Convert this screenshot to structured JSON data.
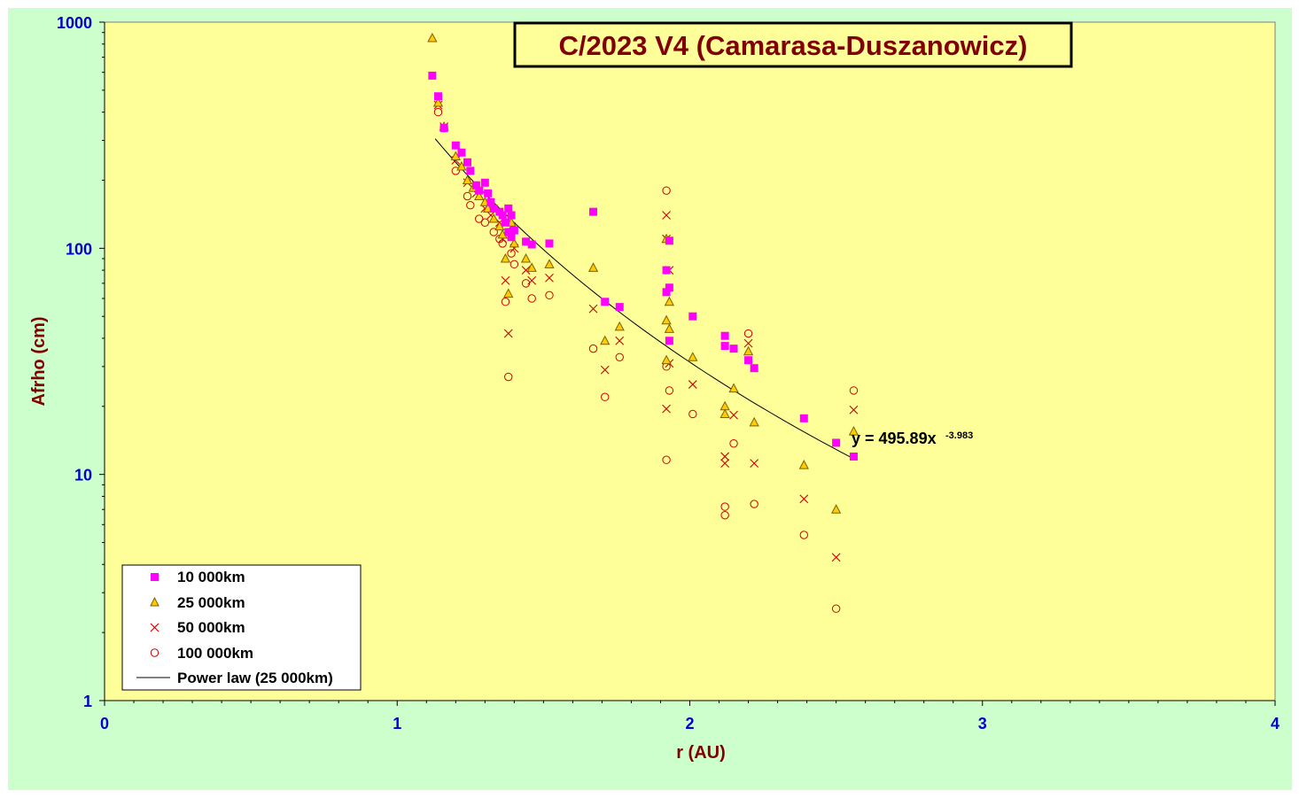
{
  "chart_data": {
    "type": "scatter",
    "title": "C/2023 V4 (Camarasa-Duszanowicz)",
    "xlabel": "r (AU)",
    "ylabel": "Afrho (cm)",
    "xlim": [
      0,
      4
    ],
    "ylim": [
      1,
      1000
    ],
    "yscale": "log",
    "x_ticks": [
      "0",
      "1",
      "2",
      "3",
      "4"
    ],
    "y_ticks": [
      "1",
      "10",
      "100",
      "1000"
    ],
    "grid": false,
    "legend_position": "bottom-left",
    "plot_background": "#ffff99",
    "figure_background": "#ccffcc",
    "annotation": {
      "base": "y = 495.89x",
      "exponent": "-3.983"
    },
    "fit": {
      "name": "Power law (25 000km)",
      "coefficient": 495.89,
      "exponent": -3.983,
      "x_range": [
        1.13,
        2.56
      ],
      "color": "#000000"
    },
    "series": [
      {
        "name": "10 000km",
        "marker": "square",
        "color": "#ff00ff",
        "points": [
          [
            1.12,
            580
          ],
          [
            1.14,
            470
          ],
          [
            1.16,
            340
          ],
          [
            1.2,
            285
          ],
          [
            1.22,
            265
          ],
          [
            1.24,
            240
          ],
          [
            1.25,
            220
          ],
          [
            1.27,
            190
          ],
          [
            1.28,
            180
          ],
          [
            1.3,
            195
          ],
          [
            1.31,
            175
          ],
          [
            1.32,
            160
          ],
          [
            1.33,
            150
          ],
          [
            1.35,
            145
          ],
          [
            1.36,
            140
          ],
          [
            1.37,
            130
          ],
          [
            1.38,
            150
          ],
          [
            1.39,
            140
          ],
          [
            1.4,
            120
          ],
          [
            1.38,
            118
          ],
          [
            1.39,
            112
          ],
          [
            1.44,
            107
          ],
          [
            1.46,
            104
          ],
          [
            1.52,
            105
          ],
          [
            1.67,
            145
          ],
          [
            1.71,
            58
          ],
          [
            1.76,
            55
          ],
          [
            1.92,
            80
          ],
          [
            1.92,
            64
          ],
          [
            1.93,
            67
          ],
          [
            1.93,
            108
          ],
          [
            1.93,
            39
          ],
          [
            2.01,
            50
          ],
          [
            2.12,
            41
          ],
          [
            2.12,
            37
          ],
          [
            2.15,
            36
          ],
          [
            2.2,
            32
          ],
          [
            2.22,
            29.5
          ],
          [
            2.39,
            17.7
          ],
          [
            2.5,
            13.8
          ],
          [
            2.56,
            12
          ]
        ]
      },
      {
        "name": "25 000km",
        "marker": "triangle",
        "color": "#ffcc00",
        "points": [
          [
            1.12,
            850
          ],
          [
            1.14,
            440
          ],
          [
            1.16,
            345
          ],
          [
            1.2,
            255
          ],
          [
            1.22,
            230
          ],
          [
            1.24,
            200
          ],
          [
            1.26,
            185
          ],
          [
            1.28,
            170
          ],
          [
            1.3,
            160
          ],
          [
            1.31,
            150
          ],
          [
            1.33,
            135
          ],
          [
            1.35,
            125
          ],
          [
            1.36,
            115
          ],
          [
            1.37,
            90
          ],
          [
            1.38,
            63
          ],
          [
            1.39,
            130
          ],
          [
            1.4,
            105
          ],
          [
            1.44,
            90
          ],
          [
            1.46,
            82
          ],
          [
            1.52,
            85
          ],
          [
            1.67,
            82
          ],
          [
            1.71,
            39
          ],
          [
            1.76,
            45
          ],
          [
            1.92,
            110
          ],
          [
            1.92,
            48
          ],
          [
            1.93,
            58
          ],
          [
            1.93,
            44
          ],
          [
            1.92,
            32
          ],
          [
            2.01,
            33
          ],
          [
            2.12,
            20
          ],
          [
            2.12,
            18.5
          ],
          [
            2.15,
            24
          ],
          [
            2.2,
            35
          ],
          [
            2.22,
            17
          ],
          [
            2.39,
            11
          ],
          [
            2.5,
            7
          ],
          [
            2.56,
            15.5
          ]
        ]
      },
      {
        "name": "50 000km",
        "marker": "x",
        "color": "#cc0000",
        "points": [
          [
            1.14,
            430
          ],
          [
            1.16,
            345
          ],
          [
            1.2,
            245
          ],
          [
            1.24,
            195
          ],
          [
            1.27,
            175
          ],
          [
            1.3,
            150
          ],
          [
            1.32,
            140
          ],
          [
            1.35,
            130
          ],
          [
            1.36,
            110
          ],
          [
            1.37,
            72
          ],
          [
            1.38,
            42
          ],
          [
            1.39,
            125
          ],
          [
            1.4,
            100
          ],
          [
            1.44,
            80
          ],
          [
            1.46,
            72
          ],
          [
            1.52,
            74
          ],
          [
            1.67,
            54
          ],
          [
            1.71,
            29
          ],
          [
            1.76,
            39
          ],
          [
            1.92,
            140
          ],
          [
            1.92,
            110
          ],
          [
            1.93,
            80
          ],
          [
            1.92,
            19.5
          ],
          [
            1.93,
            31
          ],
          [
            2.01,
            25
          ],
          [
            2.12,
            11.2
          ],
          [
            2.12,
            12
          ],
          [
            2.15,
            18.3
          ],
          [
            2.2,
            38
          ],
          [
            2.22,
            11.2
          ],
          [
            2.39,
            7.8
          ],
          [
            2.5,
            4.3
          ],
          [
            2.56,
            19.3
          ]
        ]
      },
      {
        "name": "100 000km",
        "marker": "circle",
        "color": "#cc0000",
        "points": [
          [
            1.14,
            400
          ],
          [
            1.16,
            340
          ],
          [
            1.2,
            220
          ],
          [
            1.24,
            170
          ],
          [
            1.25,
            155
          ],
          [
            1.28,
            135
          ],
          [
            1.3,
            130
          ],
          [
            1.33,
            118
          ],
          [
            1.35,
            110
          ],
          [
            1.36,
            105
          ],
          [
            1.37,
            58
          ],
          [
            1.38,
            27
          ],
          [
            1.39,
            95
          ],
          [
            1.4,
            85
          ],
          [
            1.44,
            70
          ],
          [
            1.46,
            60
          ],
          [
            1.52,
            62
          ],
          [
            1.67,
            36
          ],
          [
            1.71,
            22
          ],
          [
            1.76,
            33
          ],
          [
            1.92,
            180
          ],
          [
            1.92,
            30
          ],
          [
            1.93,
            23.5
          ],
          [
            1.92,
            11.6
          ],
          [
            2.01,
            18.5
          ],
          [
            2.12,
            7.2
          ],
          [
            2.12,
            6.6
          ],
          [
            2.15,
            13.7
          ],
          [
            2.2,
            42
          ],
          [
            2.22,
            7.4
          ],
          [
            2.39,
            5.4
          ],
          [
            2.5,
            2.55
          ],
          [
            2.56,
            23.5
          ]
        ]
      }
    ]
  }
}
